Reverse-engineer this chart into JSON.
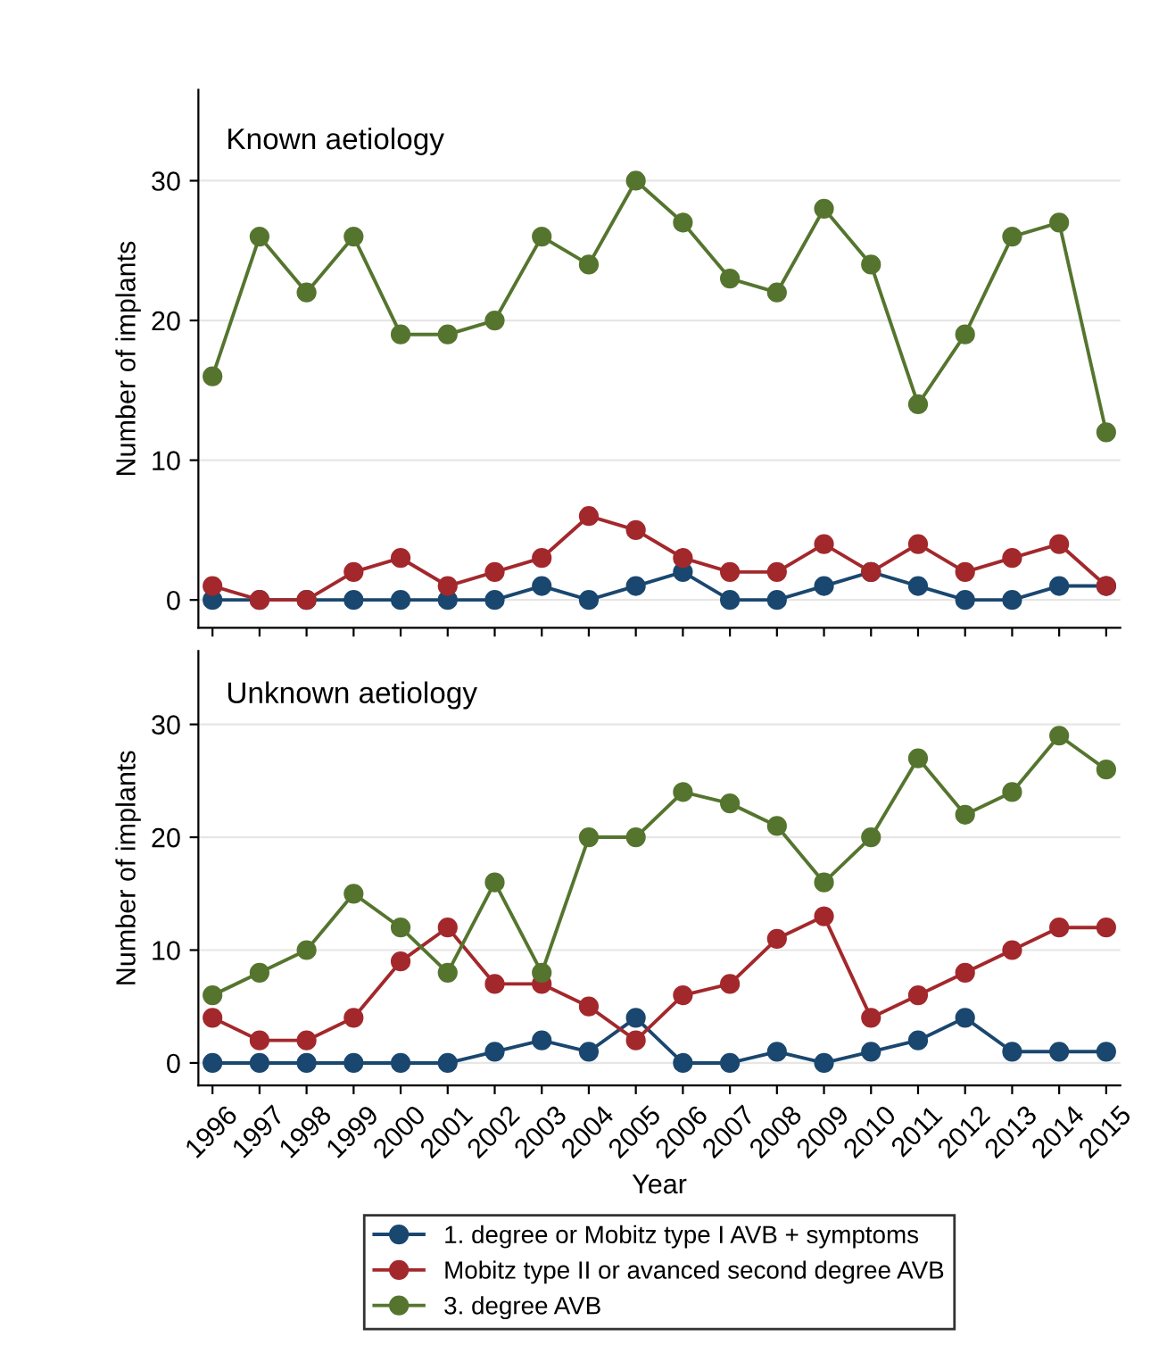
{
  "chart_data": [
    {
      "type": "line",
      "title": "Known aetiology",
      "ylabel": "Number of implants",
      "categories": [
        "1996",
        "1997",
        "1998",
        "1999",
        "2000",
        "2001",
        "2002",
        "2003",
        "2004",
        "2005",
        "2006",
        "2007",
        "2008",
        "2009",
        "2010",
        "2011",
        "2012",
        "2013",
        "2014",
        "2015"
      ],
      "ylim": [
        -2,
        36.5
      ],
      "yticks": [
        0,
        10,
        20,
        30
      ],
      "grid": "y",
      "marker": "circle",
      "line_style": "solid",
      "tick_labels": "y",
      "series": [
        {
          "color": "#1a476f",
          "values": [
            0,
            0,
            0,
            0,
            0,
            0,
            0,
            1,
            0,
            1,
            2,
            0,
            0,
            1,
            2,
            1,
            0,
            0,
            1,
            1
          ]
        },
        {
          "color": "#a3282c",
          "values": [
            1,
            0,
            0,
            2,
            3,
            1,
            2,
            3,
            6,
            5,
            3,
            2,
            2,
            4,
            2,
            4,
            2,
            3,
            4,
            1
          ]
        },
        {
          "color": "#55752f",
          "values": [
            16,
            26,
            22,
            26,
            19,
            19,
            20,
            26,
            24,
            30,
            27,
            23,
            22,
            28,
            24,
            14,
            19,
            26,
            27,
            12
          ]
        }
      ]
    },
    {
      "type": "line",
      "title": "Unknown aetiology",
      "ylabel": "Number of implants",
      "xlabel": "Year",
      "categories": [
        "1996",
        "1997",
        "1998",
        "1999",
        "2000",
        "2001",
        "2002",
        "2003",
        "2004",
        "2005",
        "2006",
        "2007",
        "2008",
        "2009",
        "2010",
        "2011",
        "2012",
        "2013",
        "2014",
        "2015"
      ],
      "ylim": [
        -2,
        36.5
      ],
      "yticks": [
        0,
        10,
        20,
        30
      ],
      "grid": "y",
      "marker": "circle",
      "line_style": "solid",
      "legend": "bottom",
      "series": [
        {
          "name": "1. degree or Mobitz type I AVB + symptoms",
          "color": "#1a476f",
          "values": [
            0,
            0,
            0,
            0,
            0,
            0,
            1,
            2,
            1,
            4,
            0,
            0,
            1,
            0,
            1,
            2,
            4,
            1,
            1,
            1
          ]
        },
        {
          "name": "Mobitz type II or avanced second degree AVB",
          "color": "#a3282c",
          "values": [
            4,
            2,
            2,
            4,
            9,
            12,
            7,
            7,
            5,
            2,
            6,
            7,
            11,
            13,
            4,
            6,
            8,
            10,
            12,
            12
          ]
        },
        {
          "name": "3. degree AVB",
          "color": "#55752f",
          "values": [
            6,
            8,
            10,
            15,
            12,
            8,
            16,
            8,
            20,
            20,
            24,
            23,
            21,
            16,
            20,
            27,
            22,
            24,
            29,
            26
          ]
        }
      ]
    }
  ]
}
